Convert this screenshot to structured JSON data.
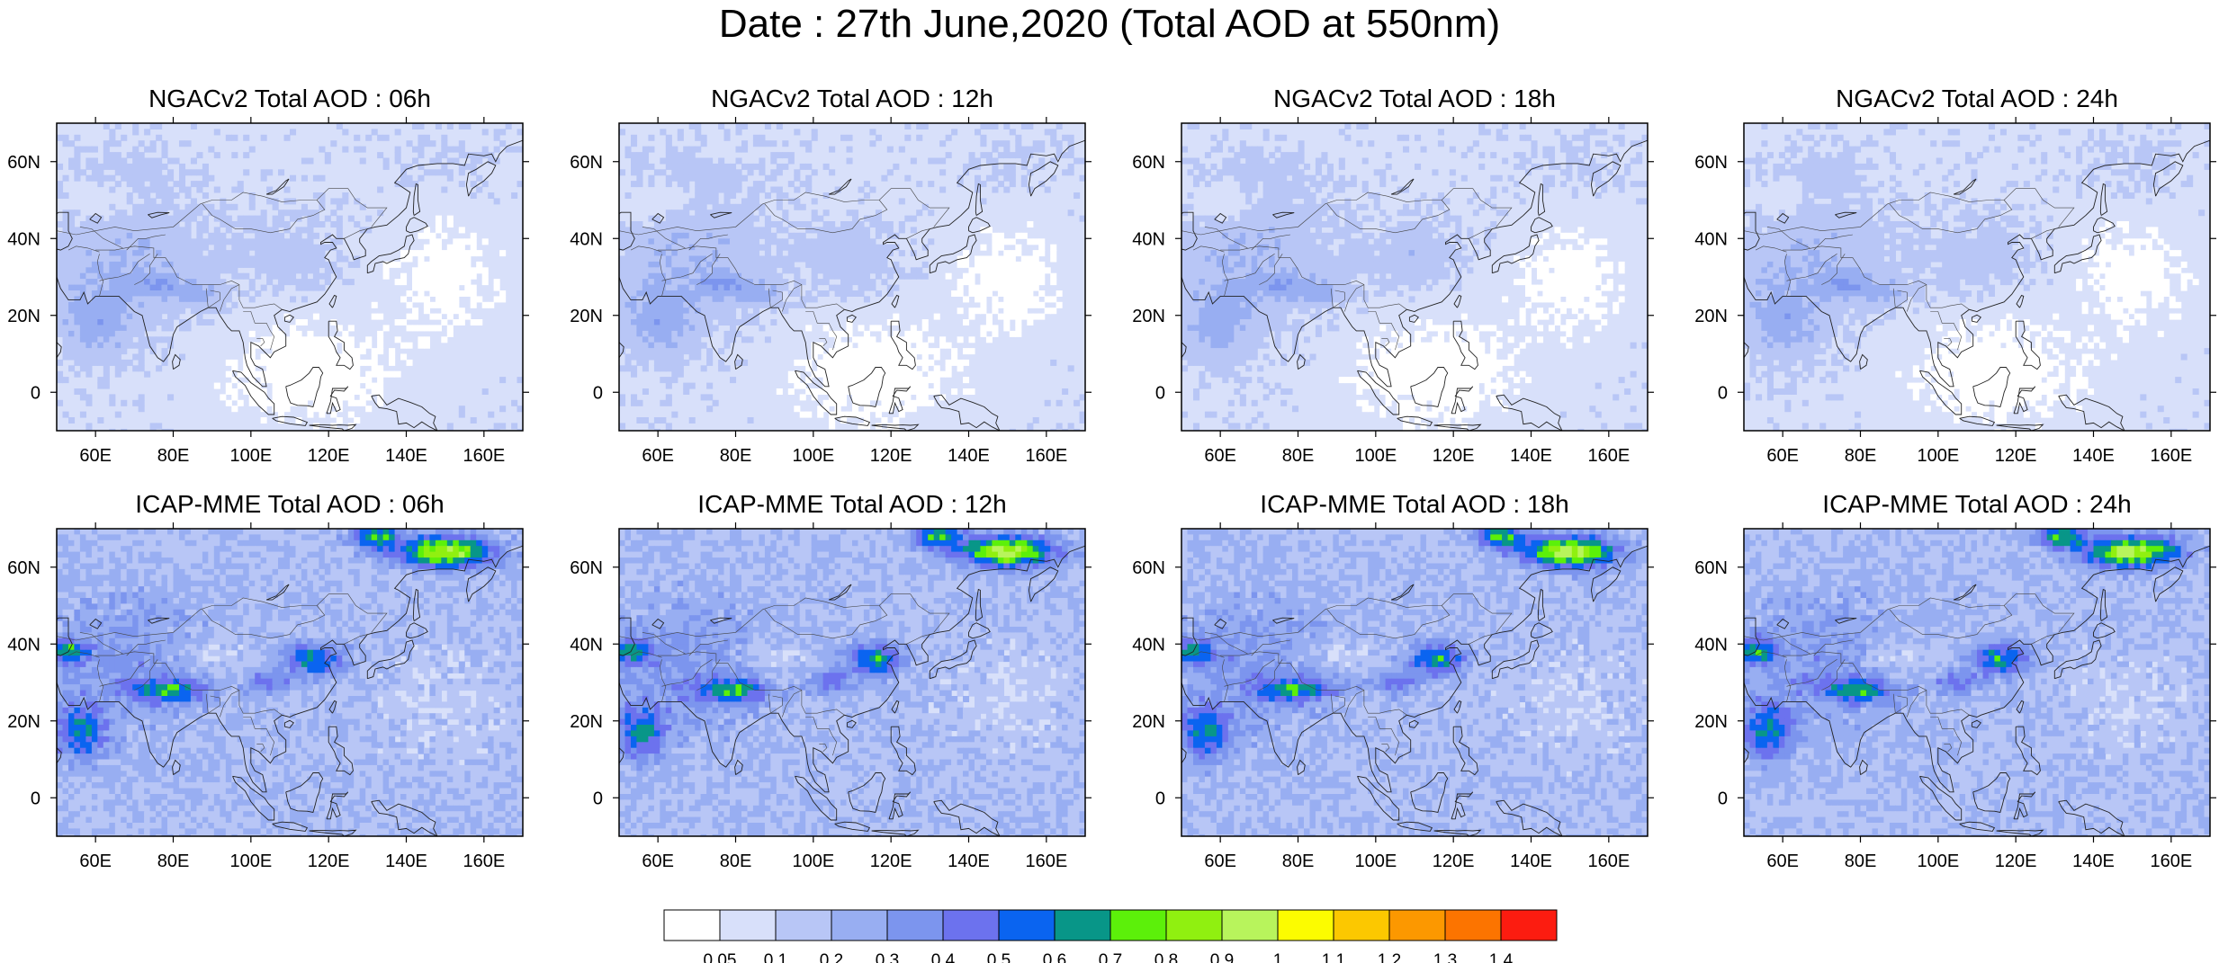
{
  "title": "Date : 27th June,2020 (Total AOD at 550nm)",
  "panels": [
    {
      "title": "NGACv2 Total AOD : 06h",
      "model": "NGACv2",
      "hour": "06h"
    },
    {
      "title": "NGACv2 Total AOD : 12h",
      "model": "NGACv2",
      "hour": "12h"
    },
    {
      "title": "NGACv2 Total AOD : 18h",
      "model": "NGACv2",
      "hour": "18h"
    },
    {
      "title": "NGACv2 Total AOD : 24h",
      "model": "NGACv2",
      "hour": "24h"
    },
    {
      "title": "ICAP-MME Total AOD : 06h",
      "model": "ICAP-MME",
      "hour": "06h"
    },
    {
      "title": "ICAP-MME Total AOD : 12h",
      "model": "ICAP-MME",
      "hour": "12h"
    },
    {
      "title": "ICAP-MME Total AOD : 18h",
      "model": "ICAP-MME",
      "hour": "18h"
    },
    {
      "title": "ICAP-MME Total AOD : 24h",
      "model": "ICAP-MME",
      "hour": "24h"
    }
  ],
  "map_extent": {
    "lon": [
      50,
      170
    ],
    "lat": [
      -10,
      70
    ]
  },
  "lon_ticks": [
    {
      "value": 60,
      "label": "60E"
    },
    {
      "value": 80,
      "label": "80E"
    },
    {
      "value": 100,
      "label": "100E"
    },
    {
      "value": 120,
      "label": "120E"
    },
    {
      "value": 140,
      "label": "140E"
    },
    {
      "value": 160,
      "label": "160E"
    }
  ],
  "lat_ticks": [
    {
      "value": 60,
      "label": "60N"
    },
    {
      "value": 40,
      "label": "40N"
    },
    {
      "value": 20,
      "label": "20N"
    },
    {
      "value": 0,
      "label": "0"
    }
  ],
  "colorbar": {
    "colors": [
      "#ffffff",
      "#d8e0fa",
      "#b8c6f6",
      "#98aef2",
      "#7c95ee",
      "#6c72ee",
      "#0a64f0",
      "#089688",
      "#5cf00a",
      "#90f010",
      "#b8f45c",
      "#fcfc00",
      "#fcc800",
      "#fc9800",
      "#fc7400",
      "#fc1c10"
    ],
    "labels": [
      "0.05",
      "0.1",
      "0.2",
      "0.3",
      "0.4",
      "0.5",
      "0.6",
      "0.7",
      "0.8",
      "0.9",
      "1",
      "1.1",
      "1.2",
      "1.3",
      "1.4"
    ]
  }
}
